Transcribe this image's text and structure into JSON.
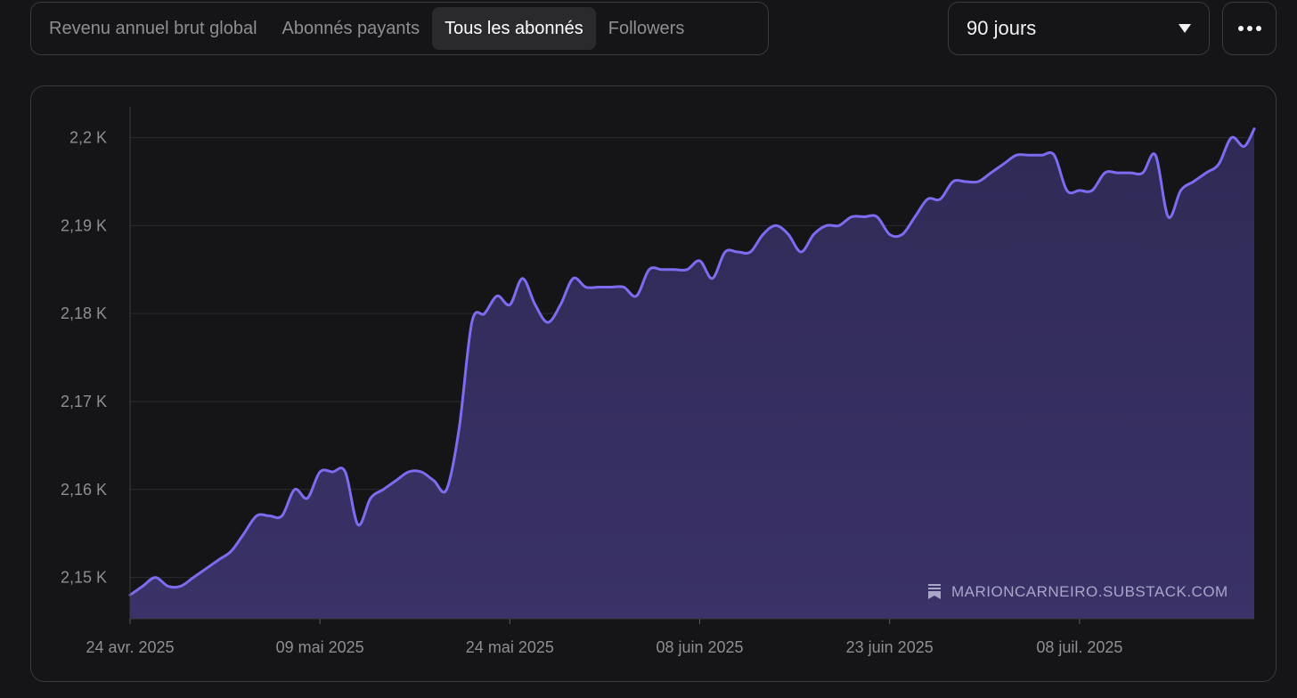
{
  "tabs": [
    {
      "label": "Revenu annuel brut global",
      "active": false
    },
    {
      "label": "Abonnés payants",
      "active": false
    },
    {
      "label": "Tous les abonnés",
      "active": true
    },
    {
      "label": "Followers",
      "active": false
    }
  ],
  "period_select": {
    "value": "90 jours"
  },
  "more_icon": "ellipsis-icon",
  "colors": {
    "line": "#7c6cf0",
    "area_top": "#2f2a55",
    "area_bottom": "#3a3268",
    "background": "#151517"
  },
  "watermark": {
    "icon": "substack-bookmark-icon",
    "text": "MARIONCARNEIRO.SUBSTACK.COM"
  },
  "chart_data": {
    "type": "area",
    "title": "",
    "xlabel": "",
    "ylabel": "",
    "y_ticks": [
      "2,15 K",
      "2,16 K",
      "2,17 K",
      "2,18 K",
      "2,19 K",
      "2,2 K"
    ],
    "y_tick_values": [
      2150,
      2160,
      2170,
      2180,
      2190,
      2200
    ],
    "x_ticks": [
      "24 avr. 2025",
      "09 mai 2025",
      "24 mai 2025",
      "08 juin 2025",
      "23 juin 2025",
      "08 juil. 2025"
    ],
    "x_tick_days": [
      0,
      15,
      30,
      45,
      60,
      75
    ],
    "ylim": [
      2145.3,
      2203.5
    ],
    "xlim": [
      0,
      88.8
    ],
    "grid": "horizontal",
    "series": [
      {
        "x": [
          0,
          1,
          2,
          3,
          4,
          5,
          6,
          7,
          8,
          9,
          10,
          11,
          12,
          13,
          14,
          15,
          16,
          17,
          18,
          19,
          20,
          21,
          22,
          23,
          24,
          25,
          26,
          27,
          28,
          29,
          30,
          31,
          32,
          33,
          34,
          35,
          36,
          37,
          38,
          39,
          40,
          41,
          42,
          43,
          44,
          45,
          46,
          47,
          48,
          49,
          50,
          51,
          52,
          53,
          54,
          55,
          56,
          57,
          58,
          59,
          60,
          61,
          62,
          63,
          64,
          65,
          66,
          67,
          68,
          69,
          70,
          71,
          72,
          73,
          74,
          75,
          76,
          77,
          78,
          79,
          80,
          81,
          82,
          83,
          84,
          85,
          86,
          87,
          88,
          88.8
        ],
        "y": [
          2148,
          2149,
          2150,
          2149,
          2149,
          2150,
          2151,
          2152,
          2153,
          2155,
          2157,
          2157,
          2157,
          2160,
          2159,
          2162,
          2162,
          2162,
          2156,
          2159,
          2160,
          2161,
          2162,
          2162,
          2161,
          2160,
          2167,
          2179,
          2180,
          2182,
          2181,
          2184,
          2181,
          2179,
          2181,
          2184,
          2183,
          2183,
          2183,
          2183,
          2182,
          2185,
          2185,
          2185,
          2185,
          2186,
          2184,
          2187,
          2187,
          2187,
          2189,
          2190,
          2189,
          2187,
          2189,
          2190,
          2190,
          2191,
          2191,
          2191,
          2189,
          2189,
          2191,
          2193,
          2193,
          2195,
          2195,
          2195,
          2196,
          2197,
          2198,
          2198,
          2198,
          2198,
          2194,
          2194,
          2194,
          2196,
          2196,
          2196,
          2196,
          2198,
          2191,
          2194,
          2195,
          2196,
          2197,
          2200,
          2199,
          2201
        ]
      }
    ]
  }
}
